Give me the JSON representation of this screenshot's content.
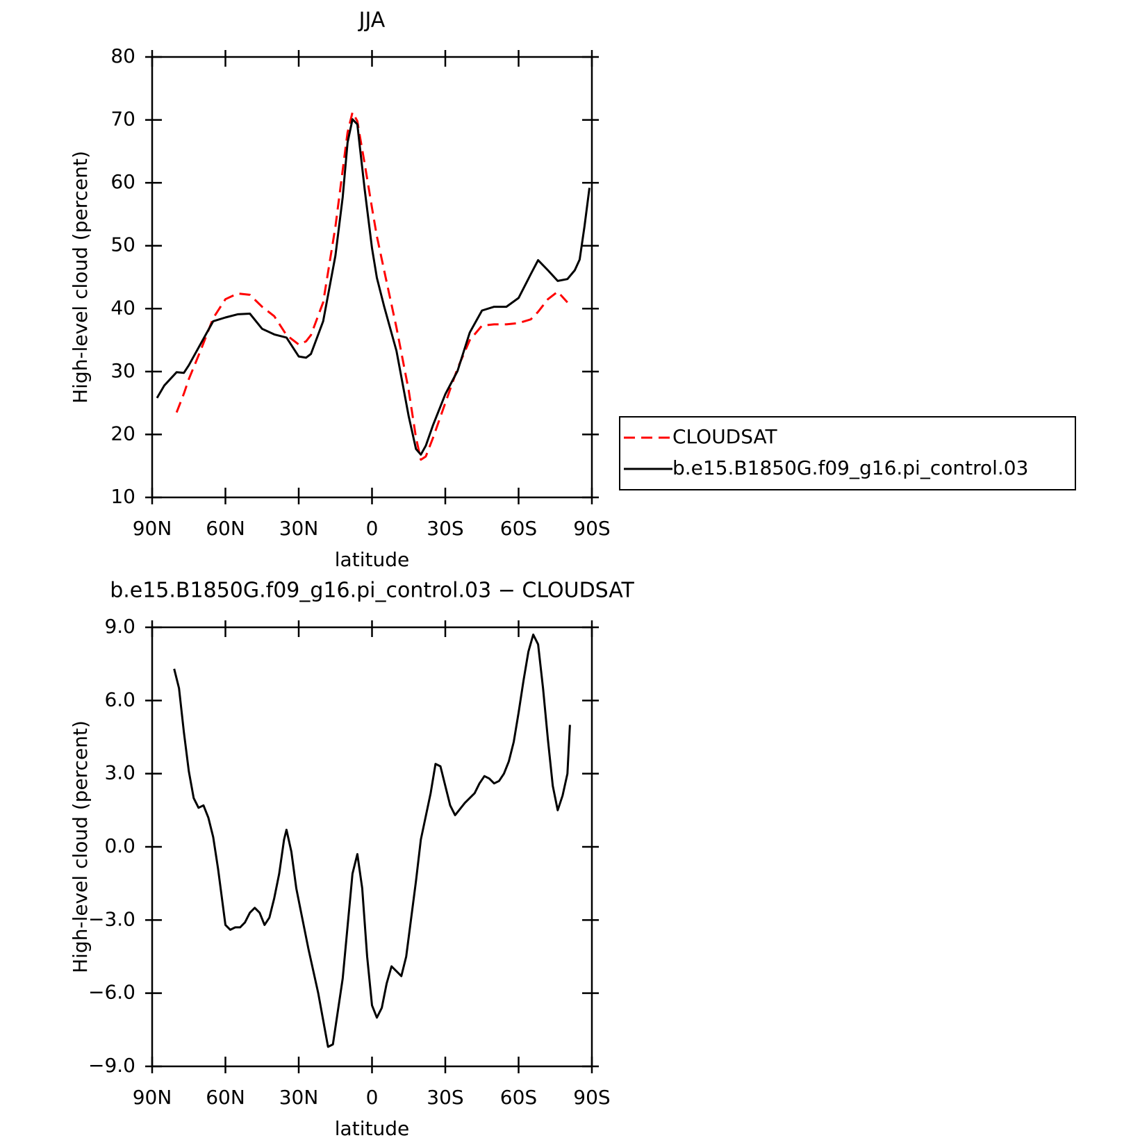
{
  "chart_data": [
    {
      "type": "line",
      "title": "JJA",
      "xlabel": "latitude",
      "ylabel": "High-level cloud (percent)",
      "xlim": [
        90,
        -90
      ],
      "xticks": [
        {
          "value": 90,
          "label": "90N"
        },
        {
          "value": 60,
          "label": "60N"
        },
        {
          "value": 30,
          "label": "30N"
        },
        0,
        {
          "value": -30,
          "label": "30S"
        },
        {
          "value": -60,
          "label": "60S"
        },
        {
          "value": -90,
          "label": "90S"
        }
      ],
      "ylim": [
        10,
        80
      ],
      "yticks": [
        10,
        20,
        30,
        40,
        50,
        60,
        70,
        80
      ],
      "legend": "right",
      "x": [
        88,
        85,
        80,
        77,
        75,
        70,
        65,
        60,
        55,
        50,
        45,
        40,
        35,
        30,
        27,
        25,
        20,
        15,
        12,
        10,
        8,
        6,
        5,
        3,
        0,
        -2,
        -5,
        -10,
        -15,
        -18,
        -20,
        -22,
        -25,
        -30,
        -35,
        -40,
        -45,
        -50,
        -55,
        -60,
        -65,
        -68,
        -72,
        -76,
        -80,
        -83,
        -85,
        -87,
        -89
      ],
      "series": [
        {
          "name": "CLOUDSAT",
          "color": "#ff0000",
          "linestyle": "dashed",
          "values": [
            null,
            null,
            23.5,
            26.5,
            28.8,
            33.5,
            38.5,
            41.5,
            42.4,
            42.2,
            40.3,
            38.8,
            35.8,
            34.3,
            34.8,
            35.8,
            41,
            53,
            62,
            68,
            71.2,
            69.8,
            67.5,
            63,
            56,
            51.5,
            46,
            37,
            27,
            19.5,
            16,
            16.5,
            19.5,
            25,
            30.5,
            35,
            37.3,
            37.5,
            37.5,
            37.7,
            38.3,
            39.5,
            41.5,
            42.7,
            41,
            null,
            null,
            null,
            null
          ]
        },
        {
          "name": "b.e15.B1850G.f09_g16.pi_control.03",
          "color": "#000000",
          "linestyle": "solid",
          "values": [
            25.8,
            27.8,
            29.9,
            29.8,
            31,
            34.5,
            38,
            38.6,
            39.1,
            39.2,
            36.8,
            35.9,
            35.4,
            32.4,
            32.2,
            32.8,
            38,
            48.4,
            57.7,
            66.4,
            70.1,
            69.3,
            65.8,
            58.9,
            49.6,
            44.9,
            40.3,
            33.3,
            22.9,
            17.7,
            16.8,
            18.2,
            21.5,
            26.4,
            30.1,
            36.2,
            39.7,
            40.3,
            40.3,
            41.7,
            45.5,
            47.7,
            46.1,
            44.4,
            44.7,
            46.1,
            47.8,
            53.1,
            59.2
          ]
        }
      ]
    },
    {
      "type": "line",
      "title": "b.e15.B1850G.f09_g16.pi_control.03 − CLOUDSAT",
      "xlabel": "latitude",
      "ylabel": "High-level cloud (percent)",
      "xlim": [
        90,
        -90
      ],
      "xticks": [
        {
          "value": 90,
          "label": "90N"
        },
        {
          "value": 60,
          "label": "60N"
        },
        {
          "value": 30,
          "label": "30N"
        },
        0,
        {
          "value": -30,
          "label": "30S"
        },
        {
          "value": -60,
          "label": "60S"
        },
        {
          "value": -90,
          "label": "90S"
        }
      ],
      "ylim": [
        -9,
        9
      ],
      "yticks": [
        {
          "value": -9,
          "label": "−9.0"
        },
        {
          "value": -6,
          "label": "−6.0"
        },
        {
          "value": -3,
          "label": "−3.0"
        },
        {
          "value": 0,
          "label": "0.0"
        },
        {
          "value": 3,
          "label": "3.0"
        },
        {
          "value": 6,
          "label": "6.0"
        },
        {
          "value": 9,
          "label": "9.0"
        }
      ],
      "x": [
        81,
        79,
        77,
        75,
        73,
        71,
        69,
        67,
        65,
        63,
        60,
        58,
        56,
        54,
        52,
        50,
        48,
        46,
        44,
        42,
        40,
        38,
        36,
        35,
        33,
        31,
        29,
        26,
        22,
        18,
        16,
        12,
        8,
        6,
        4,
        2,
        0,
        -2,
        -4,
        -6,
        -8,
        -10,
        -12,
        -14,
        -18,
        -20,
        -24,
        -26,
        -28,
        -30,
        -32,
        -34,
        -38,
        -42,
        -44,
        -46,
        -48,
        -50,
        -52,
        -54,
        -56,
        -58,
        -60,
        -62,
        -64,
        -66,
        -68,
        -70,
        -72,
        -74,
        -76,
        -78,
        -80,
        -81
      ],
      "series": [
        {
          "color": "#000000",
          "linestyle": "solid",
          "values": [
            7.3,
            6.5,
            4.7,
            3.1,
            2.0,
            1.6,
            1.7,
            1.2,
            0.4,
            -0.9,
            -3.2,
            -3.4,
            -3.3,
            -3.3,
            -3.1,
            -2.7,
            -2.5,
            -2.7,
            -3.2,
            -2.9,
            -2.1,
            -1.1,
            0.3,
            0.7,
            -0.2,
            -1.7,
            -2.7,
            -4.2,
            -6.0,
            -8.2,
            -8.1,
            -5.4,
            -1.1,
            -0.3,
            -1.7,
            -4.5,
            -6.5,
            -7.0,
            -6.6,
            -5.6,
            -4.9,
            -5.1,
            -5.3,
            -4.5,
            -1.4,
            0.3,
            2.2,
            3.4,
            3.3,
            2.5,
            1.7,
            1.3,
            1.8,
            2.2,
            2.6,
            2.9,
            2.8,
            2.6,
            2.7,
            3.0,
            3.5,
            4.3,
            5.5,
            6.8,
            8.0,
            8.7,
            8.3,
            6.5,
            4.4,
            2.5,
            1.5,
            2.1,
            3.0,
            5.0
          ]
        }
      ]
    }
  ]
}
